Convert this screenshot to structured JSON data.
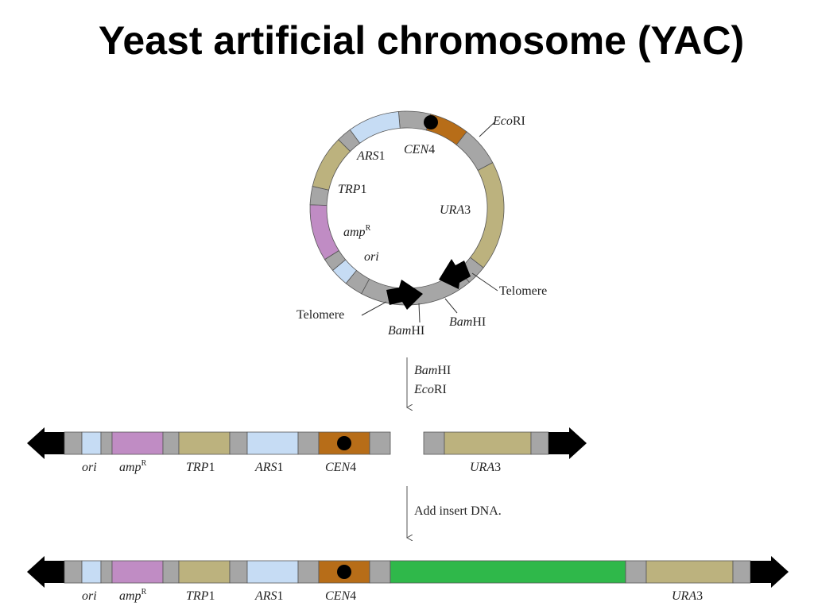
{
  "title": "Yeast artificial chromosome (YAC)",
  "plasmid": {
    "labels": {
      "ecori": {
        "it": "Eco",
        "rm": "RI"
      },
      "cen4": {
        "it": "CEN",
        "rm": "4"
      },
      "ars1": {
        "it": "ARS",
        "rm": "1"
      },
      "trp1": {
        "it": "TRP",
        "rm": "1"
      },
      "ura3": {
        "it": "URA",
        "rm": "3"
      },
      "ampr": {
        "it": "amp",
        "sup": "R"
      },
      "ori": {
        "it": "ori"
      },
      "telomere_right": "Telomere",
      "telomere_left": "Telomere",
      "bamhi_left": {
        "it": "Bam",
        "rm": "HI"
      },
      "bamhi_right": {
        "it": "Bam",
        "rm": "HI"
      }
    }
  },
  "step1": {
    "line1": {
      "it": "Bam",
      "rm": "HI"
    },
    "line2": {
      "it": "Eco",
      "rm": "RI"
    }
  },
  "step2": {
    "text": "Add insert DNA."
  },
  "linear1": {
    "labels": {
      "ori": {
        "it": "ori"
      },
      "ampr": {
        "it": "amp",
        "sup": "R"
      },
      "trp1": {
        "it": "TRP",
        "rm": "1"
      },
      "ars1": {
        "it": "ARS",
        "rm": "1"
      },
      "cen4": {
        "it": "CEN",
        "rm": "4"
      },
      "ura3": {
        "it": "URA",
        "rm": "3"
      }
    }
  },
  "linear2": {
    "labels": {
      "ori": {
        "it": "ori"
      },
      "ampr": {
        "it": "amp",
        "sup": "R"
      },
      "trp1": {
        "it": "TRP",
        "rm": "1"
      },
      "ars1": {
        "it": "ARS",
        "rm": "1"
      },
      "cen4": {
        "it": "CEN",
        "rm": "4"
      },
      "ura3": {
        "it": "URA",
        "rm": "3"
      }
    }
  },
  "colors": {
    "gray": "#a6a6a6",
    "ori_blue": "#c6dcf4",
    "amp_pink": "#c08cc4",
    "trp_olive": "#bcb27e",
    "ars_blue": "#c6dcf4",
    "cen_brown": "#b76d18",
    "ura_olive": "#bcb27e",
    "insert_green": "#2fb84a",
    "telomere": "#000000"
  }
}
